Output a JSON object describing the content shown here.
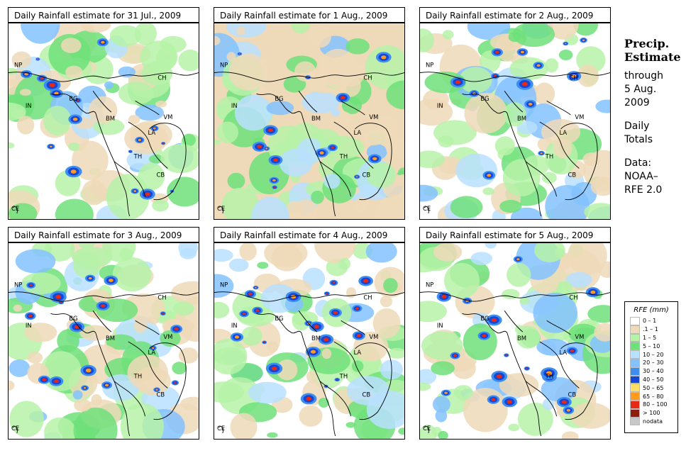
{
  "panels": [
    {
      "title": "Daily Rainfall estimate for  31 Jul., 2009",
      "intensity": 0.55
    },
    {
      "title": "Daily Rainfall estimate for  1 Aug., 2009",
      "intensity": 0.35
    },
    {
      "title": "Daily Rainfall estimate for  2 Aug., 2009",
      "intensity": 0.3
    },
    {
      "title": "Daily Rainfall estimate for  3 Aug., 2009",
      "intensity": 0.7
    },
    {
      "title": "Daily Rainfall estimate for  4 Aug., 2009",
      "intensity": 0.8
    },
    {
      "title": "Daily Rainfall estimate for  5 Aug., 2009",
      "intensity": 0.6
    }
  ],
  "map_labels": [
    "NP",
    "CH",
    "IN",
    "BG",
    "BM",
    "VM",
    "LA",
    "TH",
    "CB",
    "CE"
  ],
  "side": {
    "heading_1": "Precip.",
    "heading_2": "Estimate",
    "line_1": "through",
    "line_2": "5 Aug.",
    "line_3": "2009",
    "line_4": "Daily",
    "line_5": "Totals",
    "line_6": "Data:",
    "line_7": "NOAA–",
    "line_8": "RFE 2.0"
  },
  "legend": {
    "title": "RFE (mm)",
    "items": [
      {
        "label": "0 – 1",
        "color": "#ffffff"
      },
      {
        "label": ".1 – 1",
        "color": "#eed9b8"
      },
      {
        "label": "1 – 5",
        "color": "#b6f2a8"
      },
      {
        "label": "5 – 10",
        "color": "#6ee07a"
      },
      {
        "label": "10 – 20",
        "color": "#b8e0ff"
      },
      {
        "label": "20 – 30",
        "color": "#82c2ff"
      },
      {
        "label": "30 – 40",
        "color": "#3e8ef0"
      },
      {
        "label": "40 – 50",
        "color": "#1646d8"
      },
      {
        "label": "50 – 65",
        "color": "#ffe066"
      },
      {
        "label": "65 – 80",
        "color": "#ff9a1e"
      },
      {
        "label": "80 – 100",
        "color": "#e62814"
      },
      {
        "label": "> 100",
        "color": "#8c1e10"
      },
      {
        "label": "nodata",
        "color": "#c8c8c8"
      }
    ]
  }
}
